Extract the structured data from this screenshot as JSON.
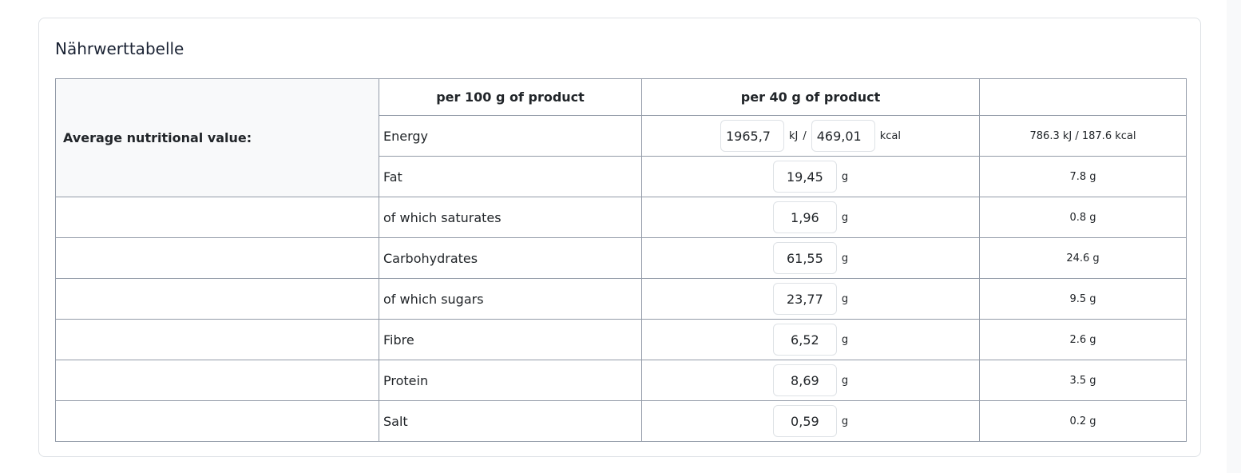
{
  "card": {
    "title": "Nährwerttabelle"
  },
  "table": {
    "header": {
      "col_per100": "per 100 g of product",
      "col_per_portion": "per 40 g of product",
      "col_calc": ""
    },
    "avg_label": "Average nutritional value:",
    "energy": {
      "label": "Energy",
      "kj_value": "1965,7",
      "kj_unit": "kJ",
      "separator": "/",
      "kcal_value": "469,01",
      "kcal_unit": "kcal",
      "calculated": "786.3 kJ / 187.6 kcal"
    },
    "rows": [
      {
        "label": "Fat",
        "value": "19,45",
        "unit": "g",
        "calculated": "7.8 g"
      },
      {
        "label": "of which saturates",
        "value": "1,96",
        "unit": "g",
        "calculated": "0.8 g"
      },
      {
        "label": "Carbohydrates",
        "value": "61,55",
        "unit": "g",
        "calculated": "24.6 g"
      },
      {
        "label": "of which sugars",
        "value": "23,77",
        "unit": "g",
        "calculated": "9.5 g"
      },
      {
        "label": "Fibre",
        "value": "6,52",
        "unit": "g",
        "calculated": "2.6 g"
      },
      {
        "label": "Protein",
        "value": "8,69",
        "unit": "g",
        "calculated": "3.5 g"
      },
      {
        "label": "Salt",
        "value": "0,59",
        "unit": "g",
        "calculated": "0.2 g"
      }
    ]
  }
}
